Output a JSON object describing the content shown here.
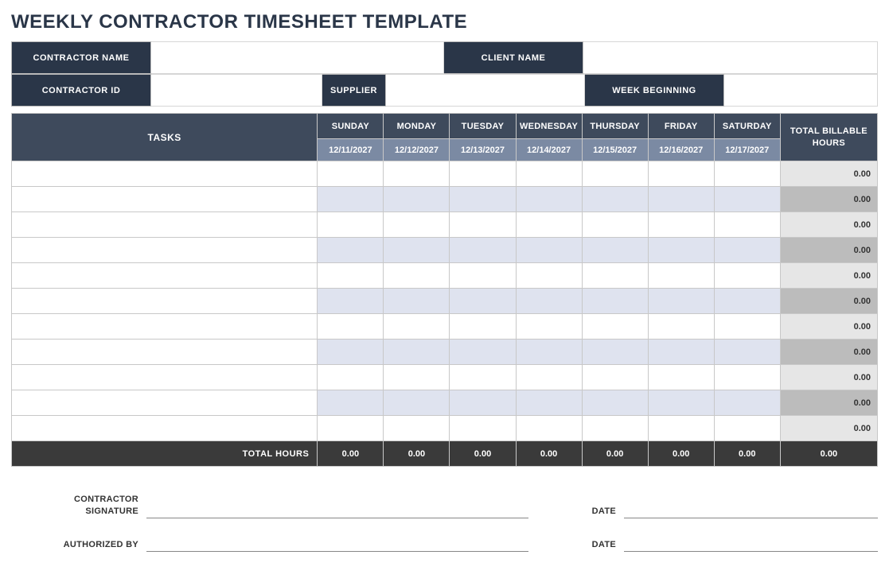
{
  "title": "WEEKLY CONTRACTOR TIMESHEET TEMPLATE",
  "header": {
    "contractor_name_label": "CONTRACTOR NAME",
    "contractor_name_value": "",
    "client_name_label": "CLIENT NAME",
    "client_name_value": "",
    "contractor_id_label": "CONTRACTOR ID",
    "contractor_id_value": "",
    "supplier_label": "SUPPLIER",
    "supplier_value": "",
    "week_beginning_label": "WEEK BEGINNING",
    "week_beginning_value": ""
  },
  "timesheet": {
    "tasks_label": "TASKS",
    "total_col_label": "TOTAL BILLABLE HOURS",
    "footer_label": "TOTAL HOURS",
    "col_widths": {
      "tasks": 384,
      "day": 83,
      "total": 122
    },
    "days": [
      {
        "name": "SUNDAY",
        "date": "12/11/2027",
        "total": "0.00"
      },
      {
        "name": "MONDAY",
        "date": "12/12/2027",
        "total": "0.00"
      },
      {
        "name": "TUESDAY",
        "date": "12/13/2027",
        "total": "0.00"
      },
      {
        "name": "WEDNESDAY",
        "date": "12/14/2027",
        "total": "0.00"
      },
      {
        "name": "THURSDAY",
        "date": "12/15/2027",
        "total": "0.00"
      },
      {
        "name": "FRIDAY",
        "date": "12/16/2027",
        "total": "0.00"
      },
      {
        "name": "SATURDAY",
        "date": "12/17/2027",
        "total": "0.00"
      }
    ],
    "rows": [
      {
        "task": "",
        "hours": [
          "",
          "",
          "",
          "",
          "",
          "",
          ""
        ],
        "total": "0.00"
      },
      {
        "task": "",
        "hours": [
          "",
          "",
          "",
          "",
          "",
          "",
          ""
        ],
        "total": "0.00"
      },
      {
        "task": "",
        "hours": [
          "",
          "",
          "",
          "",
          "",
          "",
          ""
        ],
        "total": "0.00"
      },
      {
        "task": "",
        "hours": [
          "",
          "",
          "",
          "",
          "",
          "",
          ""
        ],
        "total": "0.00"
      },
      {
        "task": "",
        "hours": [
          "",
          "",
          "",
          "",
          "",
          "",
          ""
        ],
        "total": "0.00"
      },
      {
        "task": "",
        "hours": [
          "",
          "",
          "",
          "",
          "",
          "",
          ""
        ],
        "total": "0.00"
      },
      {
        "task": "",
        "hours": [
          "",
          "",
          "",
          "",
          "",
          "",
          ""
        ],
        "total": "0.00"
      },
      {
        "task": "",
        "hours": [
          "",
          "",
          "",
          "",
          "",
          "",
          ""
        ],
        "total": "0.00"
      },
      {
        "task": "",
        "hours": [
          "",
          "",
          "",
          "",
          "",
          "",
          ""
        ],
        "total": "0.00"
      },
      {
        "task": "",
        "hours": [
          "",
          "",
          "",
          "",
          "",
          "",
          ""
        ],
        "total": "0.00"
      },
      {
        "task": "",
        "hours": [
          "",
          "",
          "",
          "",
          "",
          "",
          ""
        ],
        "total": "0.00"
      }
    ],
    "grand_total": "0.00"
  },
  "signatures": {
    "contractor_sig_label": "CONTRACTOR SIGNATURE",
    "authorized_by_label": "AUTHORIZED BY",
    "date_label": "DATE"
  },
  "colors": {
    "dark_header": "#2a3648",
    "table_header": "#3e4a5c",
    "date_header": "#7b8aa3",
    "alt_row": "#dfe3ef",
    "total_col_light": "#e6e6e6",
    "total_col_dark": "#bcbcbc",
    "footer": "#3a3a3a"
  }
}
